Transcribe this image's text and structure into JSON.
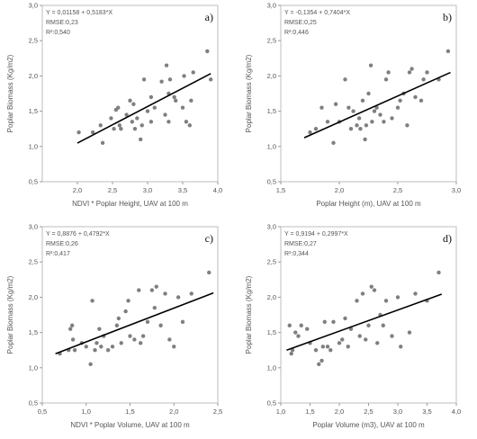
{
  "chart_data": [
    {
      "type": "scatter",
      "panel_label": "a)",
      "equation": "Y = 0,01158 + 0,5183*X",
      "rmse": "RMSE:0,23",
      "r2": "R²:0,540",
      "xlabel": "NDVI * Poplar Height, UAV at 100 m",
      "ylabel": "Poplar Biomass (Kg/m2)",
      "xlim": [
        1.5,
        4.0
      ],
      "ylim": [
        0.5,
        3.0
      ],
      "xticks": [
        "2,0",
        "2,5",
        "3,0",
        "3,5",
        "4,0"
      ],
      "xtick_values": [
        2.0,
        2.5,
        3.0,
        3.5,
        4.0
      ],
      "yticks": [
        "0,5",
        "1,0",
        "1,5",
        "2,0",
        "2,5",
        "3,0"
      ],
      "ytick_values": [
        0.5,
        1.0,
        1.5,
        2.0,
        2.5,
        3.0
      ],
      "fit": {
        "intercept": 0.01158,
        "slope": 0.5183,
        "x_range": [
          2.0,
          3.9
        ]
      },
      "points": {
        "x": [
          2.02,
          2.22,
          2.33,
          2.36,
          2.48,
          2.52,
          2.55,
          2.58,
          2.6,
          2.62,
          2.7,
          2.75,
          2.78,
          2.8,
          2.82,
          2.85,
          2.9,
          2.92,
          2.95,
          3.0,
          3.05,
          3.05,
          3.1,
          3.2,
          3.25,
          3.27,
          3.3,
          3.3,
          3.32,
          3.38,
          3.4,
          3.5,
          3.52,
          3.55,
          3.6,
          3.62,
          3.65,
          3.85,
          3.9
        ],
        "y": [
          1.2,
          1.2,
          1.3,
          1.05,
          1.4,
          1.25,
          1.52,
          1.55,
          1.3,
          1.25,
          1.45,
          1.65,
          1.35,
          1.6,
          1.25,
          1.4,
          1.1,
          1.3,
          1.95,
          1.5,
          1.35,
          1.7,
          1.55,
          1.92,
          1.45,
          2.15,
          1.35,
          1.75,
          1.95,
          1.7,
          1.65,
          1.55,
          2.0,
          1.35,
          1.3,
          1.65,
          2.05,
          2.35,
          1.95
        ]
      }
    },
    {
      "type": "scatter",
      "panel_label": "b)",
      "equation": "Y = -0,1354 + 0,7404*X",
      "rmse": "RMSE:0,25",
      "r2": "R²:0,446",
      "xlabel": "Poplar Height (m), UAV at 100 m",
      "ylabel": "Poplar Biomass (Kg/m2)",
      "xlim": [
        1.5,
        3.0
      ],
      "ylim": [
        0.5,
        3.0
      ],
      "xticks": [
        "1,5",
        "2,0",
        "2,5",
        "3,0"
      ],
      "xtick_values": [
        1.5,
        2.0,
        2.5,
        3.0
      ],
      "yticks": [
        "0,5",
        "1,0",
        "1,5",
        "2,0",
        "2,5",
        "3,0"
      ],
      "ytick_values": [
        0.5,
        1.0,
        1.5,
        2.0,
        2.5,
        3.0
      ],
      "fit": {
        "intercept": -0.1354,
        "slope": 0.7404,
        "x_range": [
          1.7,
          2.95
        ]
      },
      "points": {
        "x": [
          1.75,
          1.8,
          1.85,
          1.9,
          1.95,
          1.97,
          2.0,
          2.05,
          2.08,
          2.1,
          2.12,
          2.15,
          2.17,
          2.18,
          2.2,
          2.22,
          2.23,
          2.25,
          2.27,
          2.28,
          2.3,
          2.32,
          2.35,
          2.38,
          2.4,
          2.42,
          2.45,
          2.5,
          2.52,
          2.55,
          2.58,
          2.6,
          2.62,
          2.65,
          2.7,
          2.72,
          2.75,
          2.85,
          2.93
        ],
        "y": [
          1.2,
          1.25,
          1.55,
          1.35,
          1.05,
          1.6,
          1.35,
          1.95,
          1.55,
          1.25,
          1.5,
          1.3,
          1.4,
          1.25,
          1.65,
          1.1,
          1.3,
          1.75,
          2.15,
          1.35,
          1.5,
          1.55,
          1.45,
          1.35,
          1.95,
          2.05,
          1.4,
          1.55,
          1.65,
          1.75,
          1.3,
          2.05,
          2.1,
          1.7,
          1.65,
          1.95,
          2.05,
          1.95,
          2.35
        ]
      }
    },
    {
      "type": "scatter",
      "panel_label": "c)",
      "equation": "Y = 0,8876 + 0,4792*X",
      "rmse": "RMSE:0,26",
      "r2": "R²:0,417",
      "xlabel": "NDVI * Poplar Volume, UAV at 100 m",
      "ylabel": "Poplar Biomass (Kg/m2)",
      "xlim": [
        0.5,
        2.5
      ],
      "ylim": [
        0.5,
        3.0
      ],
      "xticks": [
        "0,5",
        "1,0",
        "1,5",
        "2,0",
        "2,5"
      ],
      "xtick_values": [
        0.5,
        1.0,
        1.5,
        2.0,
        2.5
      ],
      "yticks": [
        "0,5",
        "1,0",
        "1,5",
        "2,0",
        "2,5",
        "3,0"
      ],
      "ytick_values": [
        0.5,
        1.0,
        1.5,
        2.0,
        2.5,
        3.0
      ],
      "fit": {
        "intercept": 0.8876,
        "slope": 0.4792,
        "x_range": [
          0.65,
          2.45
        ]
      },
      "points": {
        "x": [
          0.7,
          0.8,
          0.82,
          0.84,
          0.85,
          0.87,
          0.95,
          1.0,
          1.05,
          1.07,
          1.1,
          1.12,
          1.15,
          1.17,
          1.2,
          1.25,
          1.3,
          1.35,
          1.37,
          1.4,
          1.45,
          1.48,
          1.5,
          1.55,
          1.6,
          1.62,
          1.65,
          1.7,
          1.75,
          1.78,
          1.8,
          1.85,
          1.9,
          1.95,
          2.0,
          2.05,
          2.1,
          2.2,
          2.4
        ],
        "y": [
          1.2,
          1.25,
          1.55,
          1.6,
          1.4,
          1.25,
          1.35,
          1.3,
          1.05,
          1.95,
          1.25,
          1.35,
          1.55,
          1.3,
          1.45,
          1.25,
          1.3,
          1.6,
          1.7,
          1.35,
          1.8,
          1.95,
          1.45,
          1.4,
          2.1,
          1.35,
          1.45,
          1.65,
          2.1,
          1.85,
          2.15,
          1.6,
          2.05,
          1.4,
          1.3,
          2.0,
          1.65,
          2.05,
          2.35
        ]
      }
    },
    {
      "type": "scatter",
      "panel_label": "d)",
      "equation": "Y = 0,9194 + 0,2997*X",
      "rmse": "RMSE:0,27",
      "r2": "R²:0,344",
      "xlabel": "Poplar Volume (m3), UAV at 100 m",
      "ylabel": "Poplar Biomass (Kg/m2)",
      "xlim": [
        1.0,
        4.0
      ],
      "ylim": [
        0.5,
        3.0
      ],
      "xticks": [
        "1,0",
        "1,5",
        "2,0",
        "2,5",
        "3,0",
        "3,5",
        "4,0"
      ],
      "xtick_values": [
        1.0,
        1.5,
        2.0,
        2.5,
        3.0,
        3.5,
        4.0
      ],
      "yticks": [
        "0,5",
        "1,0",
        "1,5",
        "2,0",
        "2,5",
        "3,0"
      ],
      "ytick_values": [
        0.5,
        1.0,
        1.5,
        2.0,
        2.5,
        3.0
      ],
      "fit": {
        "intercept": 0.9194,
        "slope": 0.2997,
        "x_range": [
          1.1,
          3.75
        ]
      },
      "points": {
        "x": [
          1.15,
          1.18,
          1.2,
          1.25,
          1.3,
          1.35,
          1.45,
          1.5,
          1.6,
          1.65,
          1.7,
          1.72,
          1.75,
          1.8,
          1.85,
          1.9,
          2.0,
          2.05,
          2.1,
          2.15,
          2.2,
          2.3,
          2.35,
          2.4,
          2.45,
          2.5,
          2.55,
          2.6,
          2.65,
          2.7,
          2.75,
          2.8,
          2.9,
          3.0,
          3.05,
          3.2,
          3.3,
          3.5,
          3.7
        ],
        "y": [
          1.6,
          1.2,
          1.25,
          1.5,
          1.45,
          1.6,
          1.55,
          1.35,
          1.25,
          1.05,
          1.1,
          1.3,
          1.65,
          1.3,
          1.25,
          1.65,
          1.35,
          1.4,
          1.7,
          1.3,
          1.55,
          1.95,
          1.45,
          2.05,
          1.4,
          1.6,
          2.15,
          2.1,
          1.35,
          1.75,
          1.6,
          1.95,
          1.45,
          2.0,
          1.3,
          1.5,
          2.05,
          1.95,
          2.35
        ]
      }
    }
  ]
}
